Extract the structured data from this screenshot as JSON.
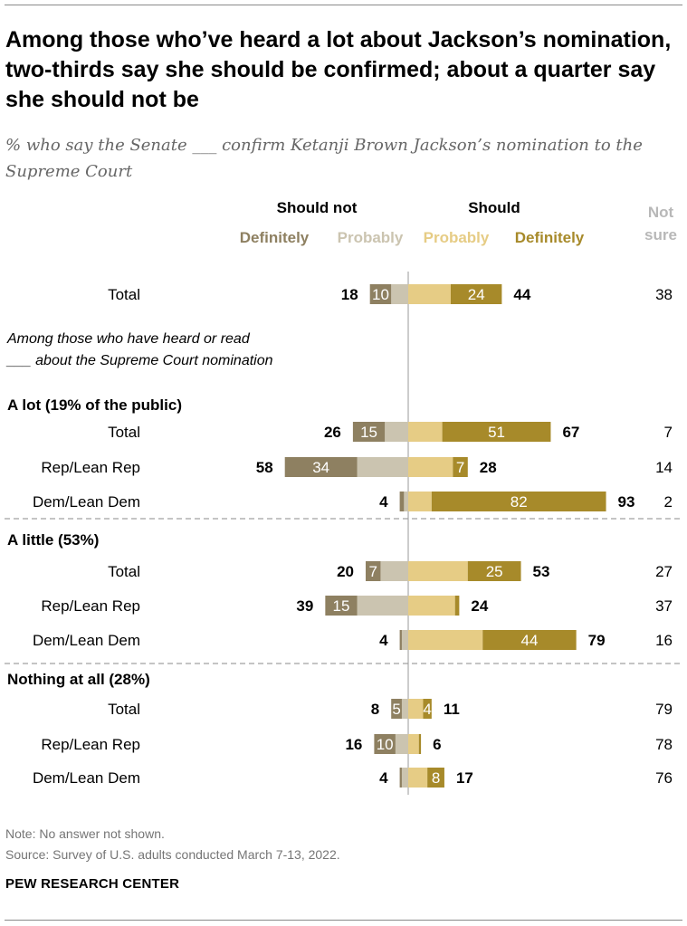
{
  "title": "Among those who’ve heard a lot about Jackson’s nomination, two-thirds say she should be confirmed; about a quarter say she should not be",
  "subtitle": "% who say the Senate ___ confirm Ketanji Brown Jackson’s nomination to the Supreme Court",
  "note": "Note: No answer not shown.",
  "source": "Source: Survey of U.S. adults conducted March 7-13, 2022.",
  "brand": "PEW RESEARCH CENTER",
  "colors": {
    "def_not": "#8e8061",
    "prob_not": "#cbc4b0",
    "prob": "#e6cc85",
    "def": "#a78a2a",
    "not_sure_header": "#b8b8b8",
    "baseline": "#9a9a9a",
    "divider": "#a0a0a0"
  },
  "chart_data": {
    "type": "bar",
    "orientation": "horizontal-diverging",
    "header_left": "Should not",
    "header_right": "Should",
    "header_not_sure": "Not sure",
    "legend": [
      "Definitely",
      "Probably",
      "Probably",
      "Definitely"
    ],
    "intro_note": "Among those who have heard or read ___ about the Supreme Court nomination",
    "groups": [
      {
        "label": "",
        "rows": [
          {
            "label": "Total",
            "def_not": 10,
            "prob_not": 8,
            "not_total": 18,
            "prob": 20,
            "def": 24,
            "yes_total": 44,
            "not_sure": 38
          }
        ]
      },
      {
        "label": "A lot (19% of the public)",
        "rows": [
          {
            "label": "Total",
            "def_not": 15,
            "prob_not": 11,
            "not_total": 26,
            "prob": 16,
            "def": 51,
            "yes_total": 67,
            "not_sure": 7
          },
          {
            "label": "Rep/Lean Rep",
            "def_not": 34,
            "prob_not": 24,
            "not_total": 58,
            "prob": 21,
            "def": 7,
            "yes_total": 28,
            "not_sure": 14
          },
          {
            "label": "Dem/Lean Dem",
            "def_not": 2,
            "prob_not": 2,
            "not_total": 4,
            "prob": 11,
            "def": 82,
            "yes_total": 93,
            "not_sure": 2
          }
        ]
      },
      {
        "label": "A little (53%)",
        "rows": [
          {
            "label": "Total",
            "def_not": 7,
            "prob_not": 13,
            "not_total": 20,
            "prob": 28,
            "def": 25,
            "yes_total": 53,
            "not_sure": 27
          },
          {
            "label": "Rep/Lean Rep",
            "def_not": 15,
            "prob_not": 24,
            "not_total": 39,
            "prob": 22,
            "def": 2,
            "yes_total": 24,
            "not_sure": 37
          },
          {
            "label": "Dem/Lean Dem",
            "def_not": 1,
            "prob_not": 3,
            "not_total": 4,
            "prob": 35,
            "def": 44,
            "yes_total": 79,
            "not_sure": 16
          }
        ]
      },
      {
        "label": "Nothing at all (28%)",
        "rows": [
          {
            "label": "Total",
            "def_not": 5,
            "prob_not": 3,
            "not_total": 8,
            "prob": 7,
            "def": 4,
            "yes_total": 11,
            "not_sure": 79
          },
          {
            "label": "Rep/Lean Rep",
            "def_not": 10,
            "prob_not": 6,
            "not_total": 16,
            "prob": 5,
            "def": 1,
            "yes_total": 6,
            "not_sure": 78
          },
          {
            "label": "Dem/Lean Dem",
            "def_not": 1,
            "prob_not": 3,
            "not_total": 4,
            "prob": 9,
            "def": 8,
            "yes_total": 17,
            "not_sure": 76
          }
        ]
      }
    ]
  }
}
